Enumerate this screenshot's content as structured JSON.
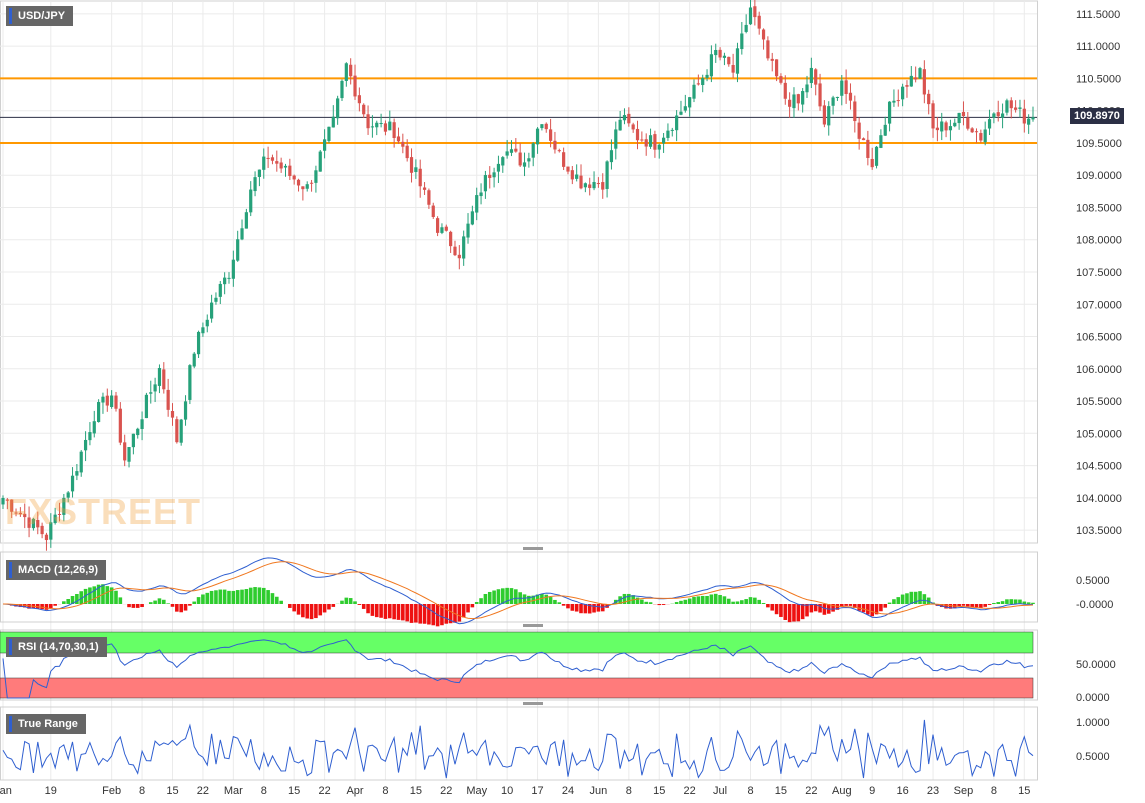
{
  "symbol": "USD/JPY",
  "last_price": "109.8970",
  "watermark": "FXSTREET",
  "price_axis": {
    "labels": [
      "111.5000",
      "111.0000",
      "110.5000",
      "110.0000",
      "109.5000",
      "109.0000",
      "108.5000",
      "108.0000",
      "107.5000",
      "107.0000",
      "106.5000",
      "106.0000",
      "105.5000",
      "105.0000",
      "104.5000",
      "104.0000",
      "103.5000"
    ]
  },
  "x_axis": {
    "labels": [
      "Jan",
      "19",
      "Feb",
      "8",
      "15",
      "22",
      "Mar",
      "8",
      "15",
      "22",
      "Apr",
      "8",
      "15",
      "22",
      "May",
      "10",
      "17",
      "24",
      "Jun",
      "8",
      "15",
      "22",
      "Jul",
      "8",
      "15",
      "22",
      "Aug",
      "9",
      "16",
      "23",
      "Sep",
      "8",
      "15"
    ]
  },
  "indicators": {
    "macd": {
      "label": "MACD (12,26,9)",
      "axis_labels": [
        "0.5000",
        "-0.0000"
      ]
    },
    "rsi": {
      "label": "RSI (14,70,30,1)",
      "axis_labels": [
        "50.0000",
        "0.0000"
      ]
    },
    "true_range": {
      "label": "True Range",
      "axis_labels": [
        "1.0000",
        "0.5000"
      ]
    }
  },
  "colors": {
    "bull": "#26a17a",
    "bear": "#d9534f",
    "level": "#ff9800",
    "macd_line": "#2f5fd0",
    "signal_line": "#f07820",
    "rsi_upper": "#66ff66",
    "rsi_lower": "#ff7b7b"
  },
  "chart_data": {
    "type": "candlestick",
    "title": "USD/JPY",
    "ylim": [
      103.3,
      111.7
    ],
    "horizontal_levels": [
      110.5,
      109.5
    ],
    "current_price": 109.897,
    "daily_anchors": [
      [
        0,
        104.0
      ],
      [
        10,
        103.4
      ],
      [
        16,
        104.3
      ],
      [
        21,
        105.3
      ],
      [
        25,
        105.6
      ],
      [
        28,
        104.6
      ],
      [
        32,
        105.3
      ],
      [
        36,
        106.0
      ],
      [
        40,
        104.9
      ],
      [
        44,
        106.3
      ],
      [
        48,
        107.0
      ],
      [
        52,
        107.5
      ],
      [
        57,
        108.8
      ],
      [
        61,
        109.3
      ],
      [
        66,
        109.0
      ],
      [
        70,
        108.8
      ],
      [
        76,
        109.8
      ],
      [
        79,
        110.7
      ],
      [
        84,
        109.8
      ],
      [
        90,
        109.7
      ],
      [
        95,
        109.0
      ],
      [
        100,
        108.2
      ],
      [
        105,
        107.8
      ],
      [
        110,
        108.8
      ],
      [
        115,
        109.4
      ],
      [
        120,
        109.2
      ],
      [
        124,
        109.9
      ],
      [
        128,
        109.3
      ],
      [
        133,
        108.9
      ],
      [
        138,
        108.9
      ],
      [
        142,
        109.9
      ],
      [
        146,
        109.6
      ],
      [
        150,
        109.5
      ],
      [
        155,
        109.9
      ],
      [
        160,
        110.4
      ],
      [
        164,
        110.9
      ],
      [
        168,
        110.6
      ],
      [
        172,
        111.6
      ],
      [
        176,
        110.8
      ],
      [
        180,
        110.2
      ],
      [
        183,
        110.1
      ],
      [
        186,
        110.6
      ],
      [
        189,
        109.8
      ],
      [
        193,
        110.5
      ],
      [
        196,
        109.8
      ],
      [
        200,
        109.2
      ],
      [
        203,
        109.9
      ],
      [
        207,
        110.4
      ],
      [
        211,
        110.6
      ],
      [
        214,
        109.7
      ],
      [
        218,
        109.8
      ],
      [
        221,
        109.9
      ],
      [
        225,
        109.6
      ],
      [
        228,
        110.0
      ],
      [
        231,
        110.1
      ],
      [
        235,
        109.9
      ],
      [
        237,
        109.9
      ]
    ]
  }
}
